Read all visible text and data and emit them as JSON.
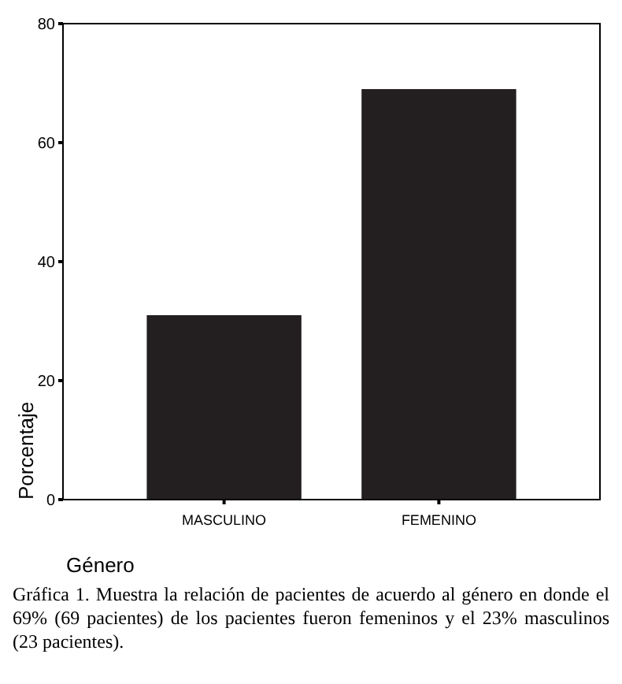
{
  "chart_data": {
    "type": "bar",
    "categories": [
      "MASCULINO",
      "FEMENINO"
    ],
    "values": [
      31,
      69
    ],
    "color": "#231f20",
    "ylim": [
      0,
      80
    ],
    "yticks": [
      0,
      20,
      40,
      60,
      80
    ],
    "grid": false,
    "xlabel": "Género",
    "ylabel": "Porcentaje",
    "annotations": [
      "Gráfica 1. Muestra la relación de pacientes de acuerdo al género en donde el 69% (69 pacientes) de los pacientes fueron femeninos y el 23% masculinos (23 pacientes)."
    ]
  }
}
